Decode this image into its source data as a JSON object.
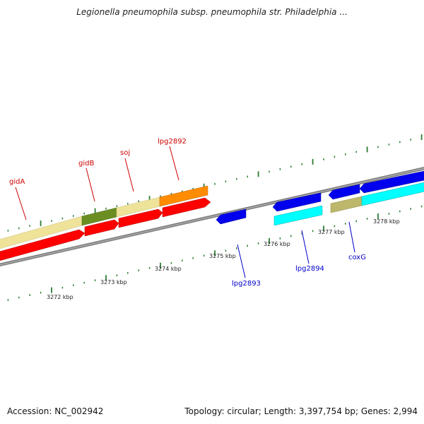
{
  "title": "Legionella pneumophila subsp. pneumophila str. Philadelphia ...",
  "footer": {
    "accession": "Accession: NC_002942",
    "summary": "Topology: circular; Length: 3,397,754 bp; Genes: 2,994"
  },
  "colors": {
    "forward_gene": "#ff0000",
    "reverse_gene": "#0000ee",
    "forward_label": "#cc0000",
    "reverse_label": "#0000cc",
    "cog_khaki": "#efe39a",
    "cog_olive": "#6b8e23",
    "cog_orange": "#ff8c00",
    "cog_cyan": "#00ffff",
    "cog_tan": "#bdb76b",
    "backbone": "#808080",
    "tick": "#2e7d32"
  },
  "scale_labels": [
    "3272 kbp",
    "3273 kbp",
    "3274 kbp",
    "3275 kbp",
    "3276 kbp",
    "3277 kbp",
    "3278 kbp"
  ],
  "gene_labels": {
    "forward": [
      "gidA",
      "gidB",
      "soj",
      "lpg2892"
    ],
    "reverse": [
      "lpg2893",
      "lpg2894",
      "coxG"
    ]
  }
}
